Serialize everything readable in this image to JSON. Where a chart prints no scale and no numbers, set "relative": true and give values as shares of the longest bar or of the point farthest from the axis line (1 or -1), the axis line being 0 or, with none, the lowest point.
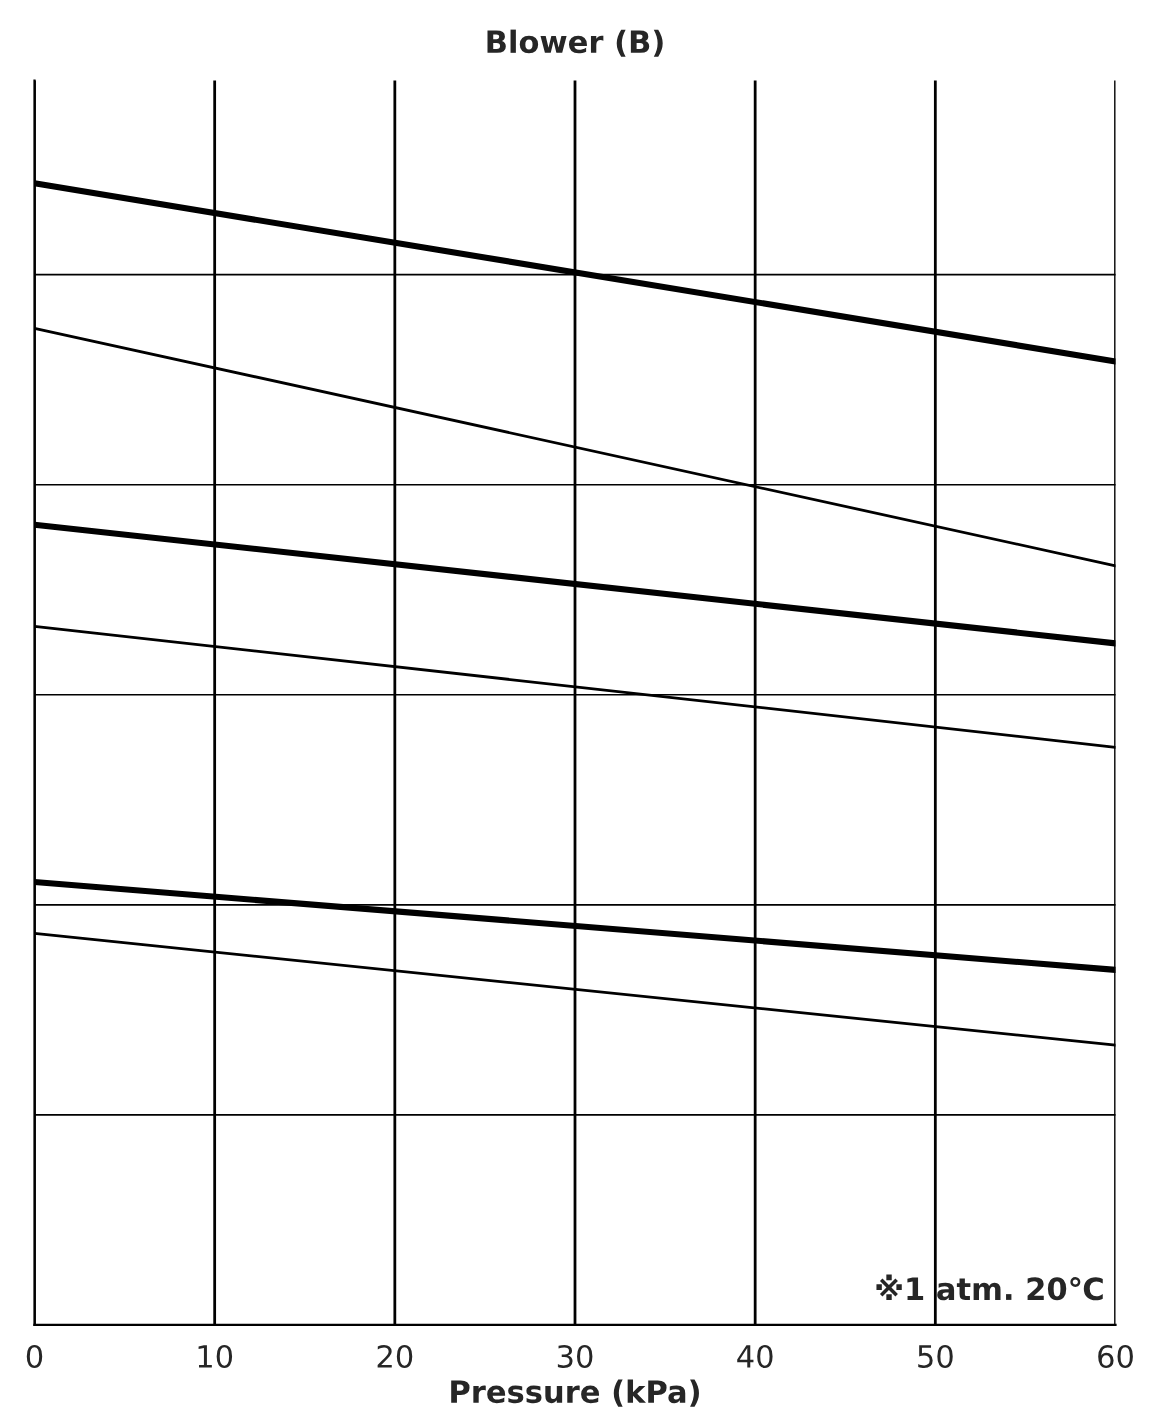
{
  "chart_data": {
    "type": "line",
    "title": "Blower (B)",
    "xlabel": "Pressure (kPa)",
    "relative": true,
    "x": [
      0,
      60
    ],
    "xlim": [
      0,
      60
    ],
    "xticks": [
      0,
      10,
      20,
      30,
      40,
      50,
      60
    ],
    "grid": true,
    "series": [
      {
        "color": "#000000",
        "values": [
          1.0,
          0.844
        ]
      },
      {
        "color": "#000000",
        "values": [
          0.873,
          0.665
        ]
      },
      {
        "color": "#000000",
        "values": [
          0.701,
          0.597
        ]
      },
      {
        "color": "#000000",
        "values": [
          0.612,
          0.506
        ]
      },
      {
        "color": "#000000",
        "values": [
          0.388,
          0.311
        ]
      },
      {
        "color": "#000000",
        "values": [
          0.343,
          0.245
        ]
      }
    ],
    "annotations": [
      "※1 atm. 20℃"
    ]
  }
}
